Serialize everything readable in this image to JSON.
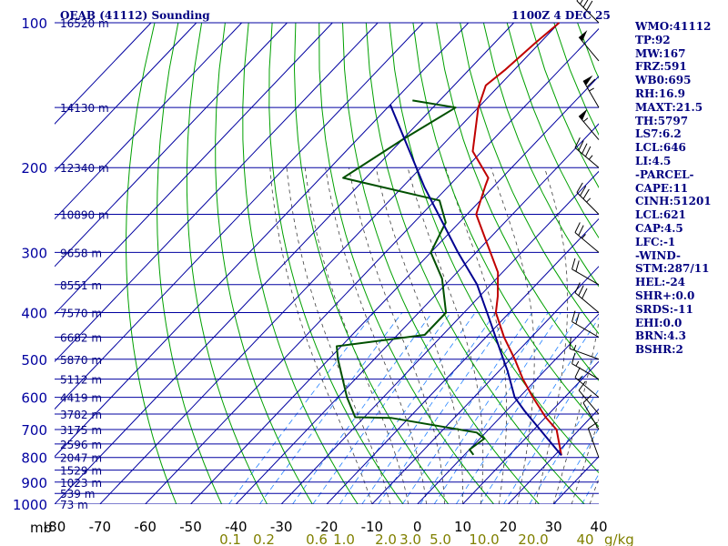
{
  "title": "OEAB (41112) Sounding",
  "valid_time": "1100Z  4 DEC 25",
  "units": {
    "pressure": "mb",
    "mixing_ratio": "g/kg"
  },
  "colors": {
    "isobar": "#0000a0",
    "isotherm": "#0000a0",
    "dry_adiabat": "#00a000",
    "moist_adiabat": "#404040",
    "mixing_ratio": "#2080ff",
    "temperature": "#c00000",
    "dewpoint": "#005000",
    "parcel": "#000090",
    "heights": "#000080",
    "mixing_labels": "#808000",
    "wind": "#000000"
  },
  "info_lines": [
    "WMO:41112",
    "TP:92",
    "MW:167",
    "FRZ:591",
    "WB0:695",
    "RH:16.9",
    "MAXT:21.5",
    "TH:5797",
    "LS7:6.2",
    "LCL:646",
    "LI:4.5",
    "-PARCEL-",
    "CAPE:11",
    "CINH:51201",
    "LCL:621",
    "CAP:4.5",
    "LFC:-1",
    "-WIND-",
    "STM:287/11",
    "HEL:-24",
    "SHR+:0.0",
    "SRDS:-11",
    "EHI:0.0",
    "BRN:4.3",
    "BSHR:2"
  ],
  "chart_data": {
    "type": "line",
    "title": "OEAB (41112) Sounding",
    "xlabel": "",
    "ylabel": "mb",
    "x_range": [
      -80,
      40
    ],
    "y_range": [
      1000,
      100
    ],
    "x_ticks": [
      "-80",
      "-70",
      "-60",
      "-50",
      "-40",
      "-30",
      "-20",
      "-10",
      "0",
      "10",
      "20",
      "30",
      "40"
    ],
    "pressure_levels": [
      100,
      200,
      300,
      400,
      500,
      600,
      700,
      800,
      900,
      1000
    ],
    "height_labels": [
      {
        "p": 100,
        "label": "16520 m"
      },
      {
        "p": 150,
        "label": "14130 m"
      },
      {
        "p": 200,
        "label": "12340 m"
      },
      {
        "p": 250,
        "label": "10890 m"
      },
      {
        "p": 300,
        "label": "9658 m"
      },
      {
        "p": 350,
        "label": "8551 m"
      },
      {
        "p": 400,
        "label": "7570 m"
      },
      {
        "p": 450,
        "label": "6682 m"
      },
      {
        "p": 500,
        "label": "5870 m"
      },
      {
        "p": 550,
        "label": "5112 m"
      },
      {
        "p": 600,
        "label": "4419 m"
      },
      {
        "p": 650,
        "label": "3782 m"
      },
      {
        "p": 700,
        "label": "3175 m"
      },
      {
        "p": 750,
        "label": "2596 m"
      },
      {
        "p": 800,
        "label": "2047 m"
      },
      {
        "p": 850,
        "label": "1529 m"
      },
      {
        "p": 900,
        "label": "1023 m"
      },
      {
        "p": 950,
        "label": "539 m"
      },
      {
        "p": 1000,
        "label": "73 m"
      }
    ],
    "mixing_ratio_labels": [
      "0.1",
      "0.2",
      "0.6",
      "1.0",
      "2.0",
      "3.0",
      "5.0",
      "10.0",
      "20.0",
      "40"
    ],
    "series": [
      {
        "key": "temperature",
        "values": [
          [
            -70,
            100
          ],
          [
            -71,
            110
          ],
          [
            -72,
            125
          ],
          [
            -73,
            135
          ],
          [
            -70,
            150
          ],
          [
            -62,
            185
          ],
          [
            -53,
            210
          ],
          [
            -52,
            218
          ],
          [
            -48,
            250
          ],
          [
            -40,
            285
          ],
          [
            -31,
            330
          ],
          [
            -26,
            370
          ],
          [
            -23,
            400
          ],
          [
            -16,
            450
          ],
          [
            -9,
            500
          ],
          [
            -3,
            550
          ],
          [
            3,
            600
          ],
          [
            10,
            660
          ],
          [
            15,
            700
          ],
          [
            21.5,
            792
          ]
        ]
      },
      {
        "key": "dewpoint",
        "values": [
          [
            -86,
            145
          ],
          [
            -75,
            150
          ],
          [
            -80,
            175
          ],
          [
            -85,
            210
          ],
          [
            -59,
            234
          ],
          [
            -53,
            260
          ],
          [
            -50,
            300
          ],
          [
            -42,
            340
          ],
          [
            -34,
            400
          ],
          [
            -34,
            445
          ],
          [
            -51,
            470
          ],
          [
            -48,
            500
          ],
          [
            -38,
            600
          ],
          [
            -32,
            660
          ],
          [
            -24,
            662
          ],
          [
            -2,
            710
          ],
          [
            1,
            731
          ],
          [
            0,
            770
          ],
          [
            2,
            790
          ]
        ]
      },
      {
        "key": "parcel",
        "values": [
          [
            -90,
            148
          ],
          [
            -65,
            220
          ],
          [
            -44,
            300
          ],
          [
            -33,
            350
          ],
          [
            -22,
            420
          ],
          [
            -14,
            480
          ],
          [
            -8,
            530
          ],
          [
            -1,
            600
          ],
          [
            4,
            640
          ],
          [
            21.5,
            792
          ]
        ]
      }
    ],
    "wind_barbs": [
      {
        "p": 100,
        "dir": 315,
        "spd": 40
      },
      {
        "p": 120,
        "dir": 320,
        "spd": 50
      },
      {
        "p": 150,
        "dir": 330,
        "spd": 65
      },
      {
        "p": 175,
        "dir": 320,
        "spd": 55
      },
      {
        "p": 200,
        "dir": 310,
        "spd": 45
      },
      {
        "p": 250,
        "dir": 315,
        "spd": 35
      },
      {
        "p": 300,
        "dir": 310,
        "spd": 25
      },
      {
        "p": 350,
        "dir": 300,
        "spd": 20
      },
      {
        "p": 400,
        "dir": 310,
        "spd": 30
      },
      {
        "p": 450,
        "dir": 300,
        "spd": 20
      },
      {
        "p": 500,
        "dir": 290,
        "spd": 15
      },
      {
        "p": 550,
        "dir": 300,
        "spd": 15
      },
      {
        "p": 600,
        "dir": 310,
        "spd": 15
      },
      {
        "p": 650,
        "dir": 320,
        "spd": 10
      },
      {
        "p": 700,
        "dir": 330,
        "spd": 10
      },
      {
        "p": 800,
        "dir": 340,
        "spd": 10
      }
    ]
  }
}
